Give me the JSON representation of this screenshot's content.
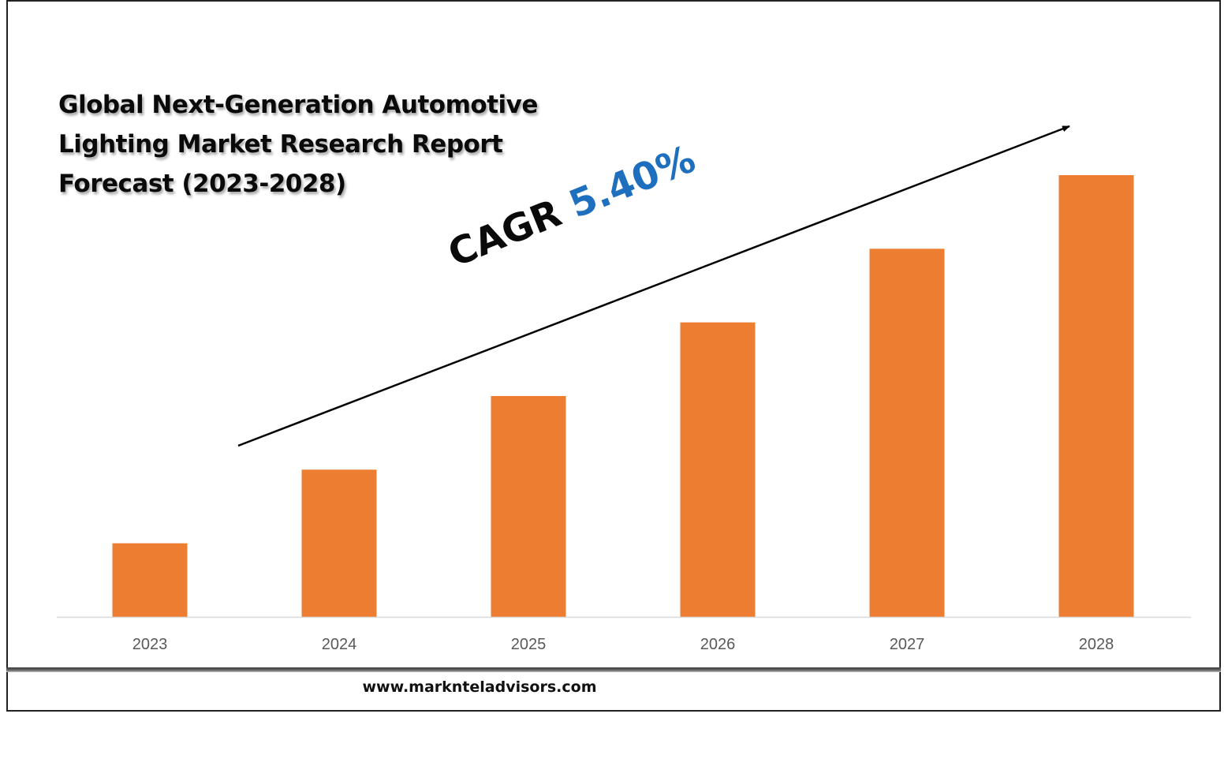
{
  "title_lines": [
    "Global Next-Generation Automotive",
    "Lighting Market Research Report",
    "Forecast (2023-2028)"
  ],
  "annotation": {
    "label": "CAGR",
    "value": "5.40%",
    "value_color": "#1f6fbf"
  },
  "source": "www.marknteladvisors.com",
  "colors": {
    "bar": "#ed7d31",
    "axis": "#d9d9d9",
    "tick_label": "#595959",
    "arrow": "#000000"
  },
  "chart_data": {
    "type": "bar",
    "categories": [
      "2023",
      "2024",
      "2025",
      "2026",
      "2027",
      "2028"
    ],
    "values": [
      1.0,
      2.0,
      3.0,
      4.0,
      5.0,
      6.0
    ],
    "ylim": [
      0,
      6.6
    ],
    "grid": false,
    "legend": "none",
    "title": "Global Next-Generation Automotive Lighting Market Research Report Forecast (2023-2028)",
    "xlabel": "",
    "ylabel": ""
  }
}
